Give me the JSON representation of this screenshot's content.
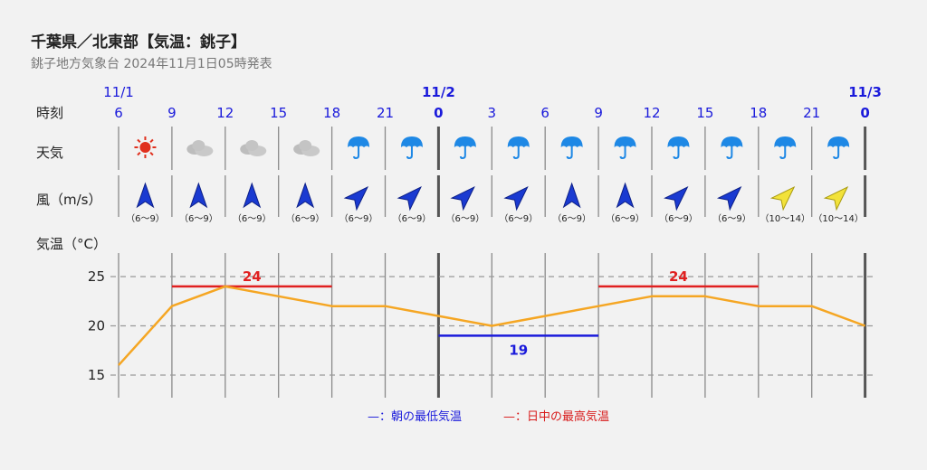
{
  "header": {
    "title": "千葉県／北東部【気温：銚子】",
    "subtitle": "銚子地方気象台 2024年11月1日05時発表"
  },
  "rows": {
    "time_label": "時刻",
    "weather_label": "天気",
    "wind_label": "風（m/s）",
    "temp_label": "気温（°C）"
  },
  "colors": {
    "blue": "#1a1adb",
    "red": "#e02020",
    "orange": "#f5a623",
    "grid": "#8a8a8a"
  },
  "chart_data": {
    "type": "line",
    "dates": [
      {
        "label": "11/1",
        "at_hour_index": 0
      },
      {
        "label": "11/2",
        "at_hour_index": 6
      },
      {
        "label": "11/3",
        "at_hour_index": 14
      }
    ],
    "hours": [
      "6",
      "9",
      "12",
      "15",
      "18",
      "21",
      "0",
      "3",
      "6",
      "9",
      "12",
      "15",
      "18",
      "21",
      "0"
    ],
    "weather": [
      "sun-icon",
      "cloud-icon",
      "cloud-icon",
      "cloud-icon",
      "umbrella-icon",
      "umbrella-icon",
      "umbrella-icon",
      "umbrella-icon",
      "umbrella-icon",
      "umbrella-icon",
      "umbrella-icon",
      "umbrella-icon",
      "umbrella-icon",
      "umbrella-icon"
    ],
    "wind": [
      {
        "dir": "N",
        "speed": "（6〜9）"
      },
      {
        "dir": "N",
        "speed": "（6〜9）"
      },
      {
        "dir": "N",
        "speed": "（6〜9）"
      },
      {
        "dir": "N",
        "speed": "（6〜9）"
      },
      {
        "dir": "NE",
        "speed": "（6〜9）"
      },
      {
        "dir": "NE",
        "speed": "（6〜9）"
      },
      {
        "dir": "NE",
        "speed": "（6〜9）"
      },
      {
        "dir": "NE",
        "speed": "（6〜9）"
      },
      {
        "dir": "N",
        "speed": "（6〜9）"
      },
      {
        "dir": "N",
        "speed": "（6〜9）"
      },
      {
        "dir": "NE",
        "speed": "（6〜9）"
      },
      {
        "dir": "NE",
        "speed": "（6〜9）"
      },
      {
        "dir": "NE",
        "speed": "（10〜14）",
        "strong": true
      },
      {
        "dir": "NE",
        "speed": "（10〜14）",
        "strong": true
      }
    ],
    "temperature": [
      16,
      22,
      24,
      23,
      22,
      22,
      21,
      20,
      21,
      22,
      23,
      23,
      22,
      22,
      20
    ],
    "y_ticks": [
      15,
      20,
      25
    ],
    "ylim": [
      13,
      27.5
    ],
    "min_temp": [
      {
        "value": 19,
        "from_index": 6,
        "to_index": 9
      }
    ],
    "max_temp": [
      {
        "value": 24,
        "from_index": 1,
        "to_index": 4
      },
      {
        "value": 24,
        "from_index": 9,
        "to_index": 12
      }
    ],
    "legend": {
      "min": "—：朝の最低気温",
      "max": "—：日中の最高気温"
    }
  }
}
